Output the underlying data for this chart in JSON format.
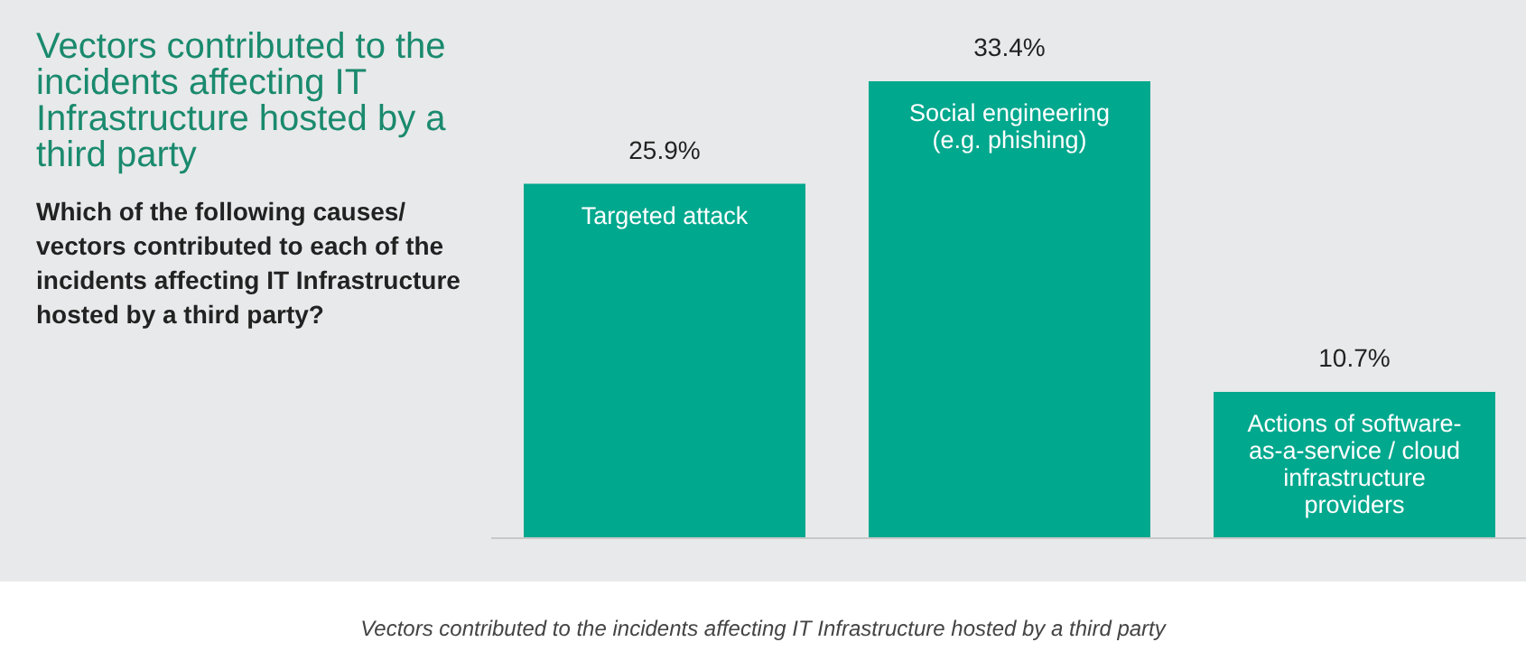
{
  "chart_data": {
    "type": "bar",
    "title": "Vectors contributed to the incidents affecting IT Infrastructure hosted by a third party",
    "subtitle": "Which of the following causes/ vectors contributed to each of the incidents affecting IT Infrastructure hosted by a third party?",
    "categories": [
      "Targeted attack",
      "Social engineering (e.g. phishing)",
      "Actions of software-as-a-service / cloud infrastructure providers"
    ],
    "values": [
      25.9,
      33.4,
      10.7
    ],
    "value_labels": [
      "25.9%",
      "33.4%",
      "10.7%"
    ],
    "color": "#00a88e",
    "annotations": [
      "Vectors contributed to the incidents affecting IT Infrastructure hosted by a third party"
    ]
  }
}
